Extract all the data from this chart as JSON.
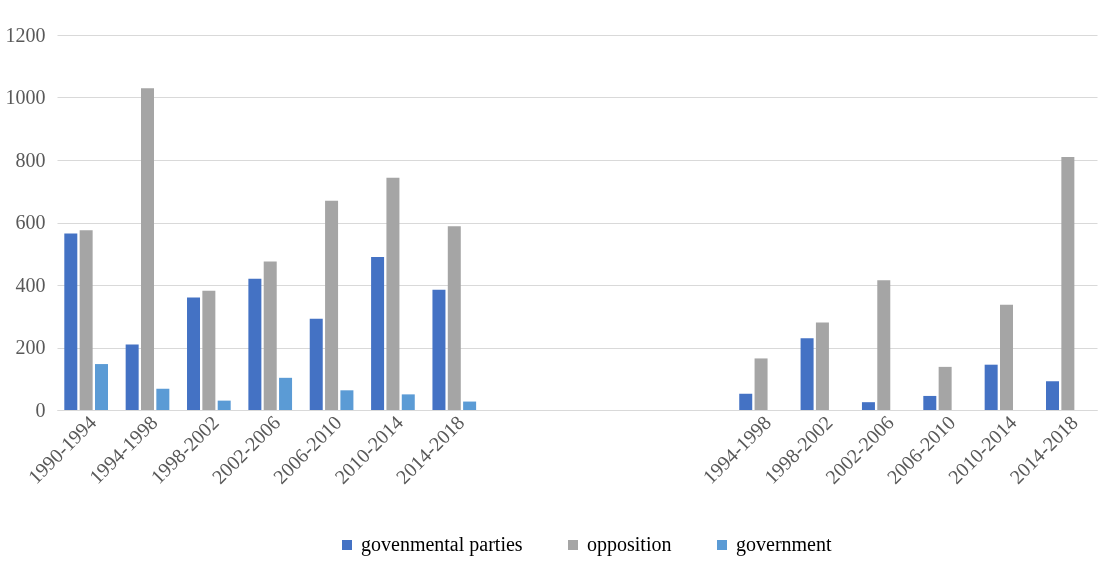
{
  "chart_data": {
    "type": "bar",
    "categories": [
      "1990-1994",
      "1994-1998",
      "1998-2002",
      "2002-2006",
      "2006-2010",
      "2010-2014",
      "2014-2018",
      null,
      null,
      null,
      null,
      "1994-1998",
      "1998-2002",
      "2002-2006",
      "2006-2010",
      "2010-2014",
      "2014-2018"
    ],
    "series": [
      {
        "name": "govenmental parties",
        "color": "#4472c4",
        "values": [
          565,
          210,
          360,
          420,
          292,
          490,
          385,
          null,
          null,
          null,
          null,
          52,
          230,
          25,
          45,
          145,
          92
        ]
      },
      {
        "name": "opposition",
        "color": "#a5a5a5",
        "values": [
          575,
          1030,
          382,
          475,
          670,
          743,
          588,
          null,
          null,
          null,
          null,
          165,
          280,
          415,
          138,
          337,
          810
        ]
      },
      {
        "name": "government",
        "color": "#5b9bd5",
        "values": [
          147,
          68,
          30,
          103,
          63,
          50,
          27,
          null,
          null,
          null,
          null,
          null,
          null,
          null,
          null,
          null,
          null
        ]
      }
    ],
    "ylim": [
      0,
      1200
    ],
    "yticks": [
      0,
      200,
      400,
      600,
      800,
      1000,
      1200
    ],
    "grid": "y",
    "legend": "bottom"
  }
}
